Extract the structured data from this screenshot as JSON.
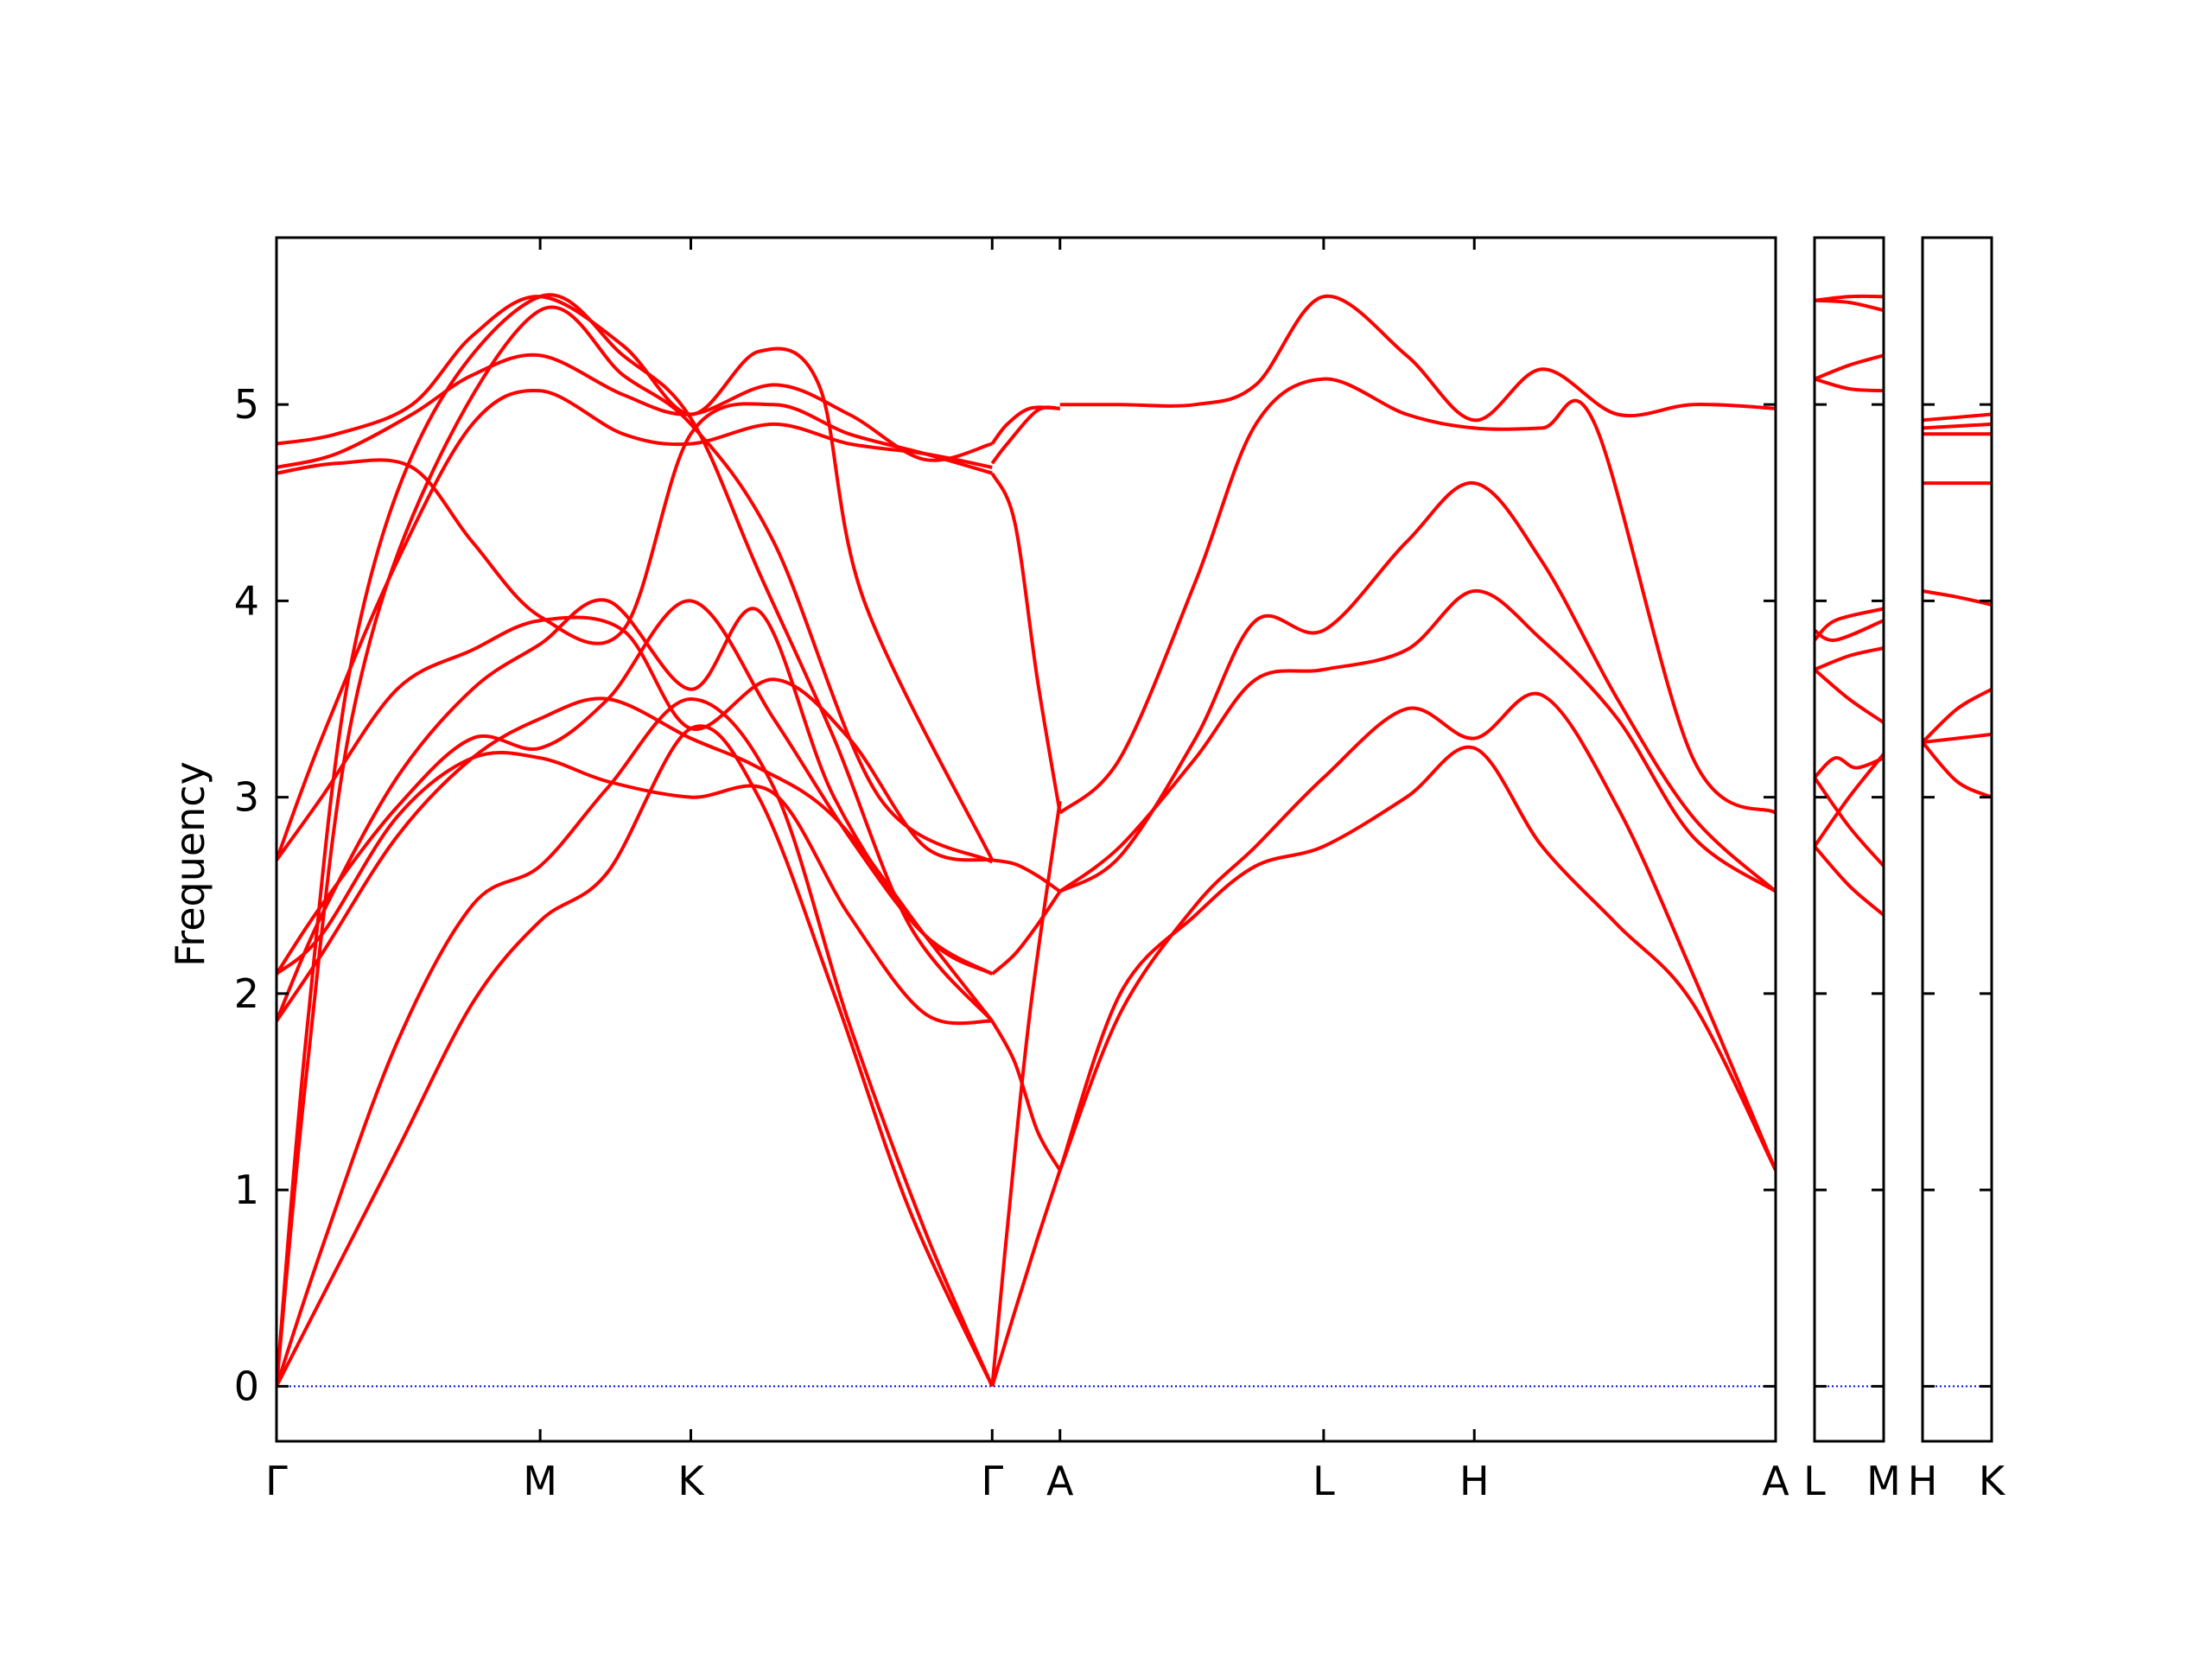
{
  "figure": {
    "ylabel": "Frequency"
  },
  "style": {
    "band_color": "#ff0000",
    "zero_line_color": "#0000ff",
    "axis_color": "#000000"
  },
  "chart_data": [
    {
      "type": "line",
      "panel": "main",
      "title": "",
      "ylabel": "Frequency",
      "ylim": [
        -0.28,
        5.85
      ],
      "yticks": [
        0,
        1,
        2,
        3,
        4,
        5
      ],
      "x_ticks": [
        {
          "label": "Γ",
          "x": 0.0
        },
        {
          "label": "M",
          "x": 1.75
        },
        {
          "label": "K",
          "x": 2.75
        },
        {
          "label": "Γ",
          "x": 4.75
        },
        {
          "label": "A",
          "x": 5.2
        },
        {
          "label": "L",
          "x": 6.95
        },
        {
          "label": "H",
          "x": 7.95
        },
        {
          "label": "A",
          "x": 9.95
        }
      ],
      "xlim": [
        0,
        9.95
      ],
      "zero_line": 0,
      "series": [
        {
          "x": [
            0,
            0.3,
            0.8,
            1.3,
            1.75,
            2.2,
            2.75,
            3.2,
            3.7,
            4.2,
            4.75
          ],
          "values": [
            0,
            0.45,
            1.2,
            1.95,
            2.37,
            2.62,
            3.35,
            3.0,
            2.0,
            0.9,
            0
          ]
        },
        {
          "x": [
            0,
            0.3,
            0.8,
            1.3,
            1.75,
            2.2,
            2.75,
            3.3,
            3.8,
            4.3,
            4.75
          ],
          "values": [
            0,
            0.7,
            1.75,
            2.45,
            2.65,
            3.05,
            3.5,
            3.05,
            1.85,
            0.8,
            0
          ]
        },
        {
          "x": [
            0,
            0.2,
            0.5,
            1.0,
            1.75,
            2.3,
            2.75,
            3.3,
            4.0,
            4.75
          ],
          "values": [
            0,
            1.6,
            3.4,
            4.6,
            5.48,
            5.15,
            4.9,
            4.3,
            3.0,
            2.67
          ]
        },
        {
          "x": [
            0,
            0.2,
            0.5,
            1.0,
            1.75,
            2.3,
            2.75,
            3.2,
            3.7,
            4.2,
            4.75
          ],
          "values": [
            0,
            1.8,
            3.7,
            4.9,
            5.55,
            5.25,
            4.93,
            4.15,
            3.3,
            2.35,
            1.86
          ]
        },
        {
          "x": [
            0,
            0.3,
            0.8,
            1.3,
            1.75,
            2.2,
            2.75,
            3.2,
            3.7,
            4.3,
            4.75
          ],
          "values": [
            1.86,
            2.2,
            2.8,
            3.2,
            3.4,
            3.5,
            3.3,
            3.15,
            2.9,
            2.3,
            1.86
          ]
        },
        {
          "x": [
            0,
            0.3,
            0.8,
            1.3,
            1.75,
            2.2,
            2.75,
            3.2,
            3.7,
            4.3,
            4.75
          ],
          "values": [
            1.86,
            2.4,
            3.1,
            3.55,
            3.78,
            4.0,
            3.55,
            3.95,
            3.0,
            2.3,
            2.1
          ]
        },
        {
          "x": [
            0,
            0.3,
            0.8,
            1.3,
            1.75,
            2.2,
            2.75,
            3.3,
            3.8,
            4.3,
            4.75
          ],
          "values": [
            2.1,
            2.3,
            2.9,
            3.2,
            3.2,
            3.08,
            3.0,
            3.02,
            2.4,
            1.9,
            1.86
          ]
        },
        {
          "x": [
            0,
            0.3,
            0.8,
            1.3,
            1.75,
            2.2,
            2.75,
            3.3,
            3.8,
            4.3,
            4.75
          ],
          "values": [
            2.1,
            2.45,
            2.95,
            3.3,
            3.25,
            3.5,
            4.0,
            3.4,
            2.8,
            2.3,
            2.1
          ]
        },
        {
          "x": [
            0,
            0.3,
            0.8,
            1.3,
            1.75,
            2.3,
            2.75,
            3.3,
            3.8,
            4.3,
            4.75
          ],
          "values": [
            2.68,
            3.0,
            3.55,
            3.75,
            3.9,
            3.85,
            3.35,
            3.6,
            3.3,
            2.75,
            2.68
          ]
        },
        {
          "x": [
            0,
            0.3,
            0.8,
            1.3,
            1.75,
            2.3,
            2.75,
            3.3,
            3.8,
            4.3,
            4.75
          ],
          "values": [
            2.68,
            3.3,
            4.2,
            4.9,
            5.07,
            4.85,
            4.8,
            4.9,
            4.8,
            4.75,
            4.68
          ]
        },
        {
          "x": [
            0,
            0.4,
            0.9,
            1.3,
            1.75,
            2.3,
            2.75,
            3.3,
            3.8,
            4.3,
            4.75
          ],
          "values": [
            4.65,
            4.7,
            4.68,
            4.3,
            3.92,
            3.85,
            4.85,
            5.0,
            4.85,
            4.75,
            4.65
          ]
        },
        {
          "x": [
            0,
            0.4,
            0.9,
            1.3,
            1.75,
            2.3,
            2.75,
            3.3,
            3.8,
            4.3,
            4.75
          ],
          "values": [
            4.68,
            4.75,
            4.95,
            5.15,
            5.25,
            5.05,
            4.95,
            5.1,
            4.95,
            4.72,
            4.8
          ]
        },
        {
          "x": [
            0,
            0.4,
            0.9,
            1.3,
            1.75,
            2.3,
            2.75,
            3.2,
            3.6,
            3.9,
            4.75
          ],
          "values": [
            4.8,
            4.85,
            5.0,
            5.35,
            5.55,
            5.3,
            4.95,
            5.27,
            5.1,
            4.0,
            2.68
          ]
        },
        {
          "x": [
            4.75,
            4.9,
            5.05,
            5.2
          ],
          "values": [
            4.65,
            4.4,
            3.6,
            2.92
          ]
        },
        {
          "x": [
            4.75,
            4.85,
            5.0,
            5.2
          ],
          "values": [
            4.8,
            4.9,
            4.98,
            4.98
          ]
        },
        {
          "x": [
            4.75,
            4.85,
            5.05,
            5.2
          ],
          "values": [
            4.7,
            4.8,
            4.97,
            4.98
          ]
        },
        {
          "x": [
            4.75,
            4.9,
            5.05,
            5.2
          ],
          "values": [
            1.86,
            1.65,
            1.3,
            1.1
          ]
        },
        {
          "x": [
            4.75,
            4.9,
            5.05,
            5.2
          ],
          "values": [
            2.68,
            2.66,
            2.6,
            2.52
          ]
        },
        {
          "x": [
            4.75,
            4.9,
            5.05,
            5.2
          ],
          "values": [
            2.1,
            2.2,
            2.35,
            2.52
          ]
        },
        {
          "x": [
            4.75,
            4.9,
            5.05,
            5.2
          ],
          "values": [
            0,
            0.38,
            0.75,
            1.1
          ]
        },
        {
          "x": [
            4.75,
            4.85,
            5.0,
            5.2
          ],
          "values": [
            0,
            0.8,
            1.9,
            2.98
          ]
        },
        {
          "x": [
            5.2,
            5.6,
            6.1,
            6.5,
            6.95,
            7.5,
            7.95,
            8.4,
            8.9,
            9.4,
            9.95
          ],
          "values": [
            5.0,
            5.0,
            5.0,
            5.1,
            5.55,
            5.25,
            4.92,
            5.18,
            4.95,
            5.0,
            4.98
          ]
        },
        {
          "x": [
            5.2,
            5.6,
            6.1,
            6.5,
            6.95,
            7.5,
            7.95,
            8.4,
            8.75,
            9.4,
            9.95
          ],
          "values": [
            2.92,
            3.2,
            4.1,
            4.9,
            5.13,
            4.95,
            4.88,
            4.88,
            4.9,
            3.2,
            2.92
          ]
        },
        {
          "x": [
            5.2,
            5.6,
            6.1,
            6.5,
            6.95,
            7.5,
            7.95,
            8.4,
            8.9,
            9.4,
            9.95
          ],
          "values": [
            2.52,
            2.7,
            3.3,
            3.9,
            3.85,
            4.3,
            4.6,
            4.2,
            3.5,
            2.9,
            2.52
          ]
        },
        {
          "x": [
            5.2,
            5.6,
            6.1,
            6.5,
            6.95,
            7.5,
            7.95,
            8.4,
            8.9,
            9.4,
            9.95
          ],
          "values": [
            2.52,
            2.75,
            3.2,
            3.6,
            3.65,
            3.75,
            4.05,
            3.8,
            3.4,
            2.8,
            2.52
          ]
        },
        {
          "x": [
            5.2,
            5.6,
            6.1,
            6.5,
            6.95,
            7.5,
            7.95,
            8.4,
            8.9,
            9.4,
            9.95
          ],
          "values": [
            1.1,
            1.9,
            2.45,
            2.75,
            3.1,
            3.45,
            3.3,
            3.52,
            2.95,
            2.1,
            1.1
          ]
        },
        {
          "x": [
            5.2,
            5.6,
            6.1,
            6.5,
            6.95,
            7.5,
            7.95,
            8.4,
            8.9,
            9.4,
            9.95
          ],
          "values": [
            1.1,
            2.0,
            2.4,
            2.65,
            2.75,
            3.0,
            3.25,
            2.75,
            2.35,
            1.95,
            1.1
          ]
        }
      ]
    },
    {
      "type": "line",
      "panel": "L-M",
      "ylim": [
        -0.28,
        5.85
      ],
      "x_ticks": [
        {
          "label": "L",
          "x": 0
        },
        {
          "label": "M",
          "x": 1
        }
      ],
      "xlim": [
        0,
        1
      ],
      "zero_line": 0,
      "series": [
        {
          "x": [
            0,
            0.5,
            1
          ],
          "values": [
            5.53,
            5.55,
            5.55
          ]
        },
        {
          "x": [
            0,
            0.5,
            1
          ],
          "values": [
            5.53,
            5.52,
            5.48
          ]
        },
        {
          "x": [
            0,
            0.5,
            1
          ],
          "values": [
            5.13,
            5.2,
            5.25
          ]
        },
        {
          "x": [
            0,
            0.5,
            1
          ],
          "values": [
            5.13,
            5.08,
            5.07
          ]
        },
        {
          "x": [
            0,
            0.3,
            1
          ],
          "values": [
            3.8,
            3.9,
            3.96
          ]
        },
        {
          "x": [
            0,
            0.3,
            1
          ],
          "values": [
            3.85,
            3.8,
            3.9
          ]
        },
        {
          "x": [
            0,
            0.5,
            1
          ],
          "values": [
            3.65,
            3.72,
            3.76
          ]
        },
        {
          "x": [
            0,
            0.5,
            1
          ],
          "values": [
            3.65,
            3.5,
            3.38
          ]
        },
        {
          "x": [
            0,
            0.3,
            0.6,
            1
          ],
          "values": [
            3.1,
            3.2,
            3.15,
            3.2
          ]
        },
        {
          "x": [
            0,
            0.5,
            1
          ],
          "values": [
            3.1,
            2.85,
            2.65
          ]
        },
        {
          "x": [
            0,
            0.5,
            1
          ],
          "values": [
            2.75,
            3.0,
            3.22
          ]
        },
        {
          "x": [
            0,
            0.5,
            1
          ],
          "values": [
            2.75,
            2.55,
            2.4
          ]
        }
      ]
    },
    {
      "type": "line",
      "panel": "H-K",
      "ylim": [
        -0.28,
        5.85
      ],
      "x_ticks": [
        {
          "label": "H",
          "x": 0
        },
        {
          "label": "K",
          "x": 1
        }
      ],
      "xlim": [
        0,
        1
      ],
      "zero_line": 0,
      "series": [
        {
          "x": [
            0,
            1
          ],
          "values": [
            4.92,
            4.95
          ]
        },
        {
          "x": [
            0,
            1
          ],
          "values": [
            4.88,
            4.9
          ]
        },
        {
          "x": [
            0,
            1
          ],
          "values": [
            4.85,
            4.85
          ]
        },
        {
          "x": [
            0,
            1
          ],
          "values": [
            4.6,
            4.6
          ]
        },
        {
          "x": [
            0,
            0.5,
            1
          ],
          "values": [
            4.05,
            4.02,
            3.98
          ]
        },
        {
          "x": [
            0,
            0.5,
            1
          ],
          "values": [
            3.28,
            3.45,
            3.55
          ]
        },
        {
          "x": [
            0,
            0.5,
            1
          ],
          "values": [
            3.28,
            3.3,
            3.32
          ]
        },
        {
          "x": [
            0,
            0.5,
            1
          ],
          "values": [
            3.28,
            3.08,
            3.0
          ]
        }
      ]
    }
  ]
}
